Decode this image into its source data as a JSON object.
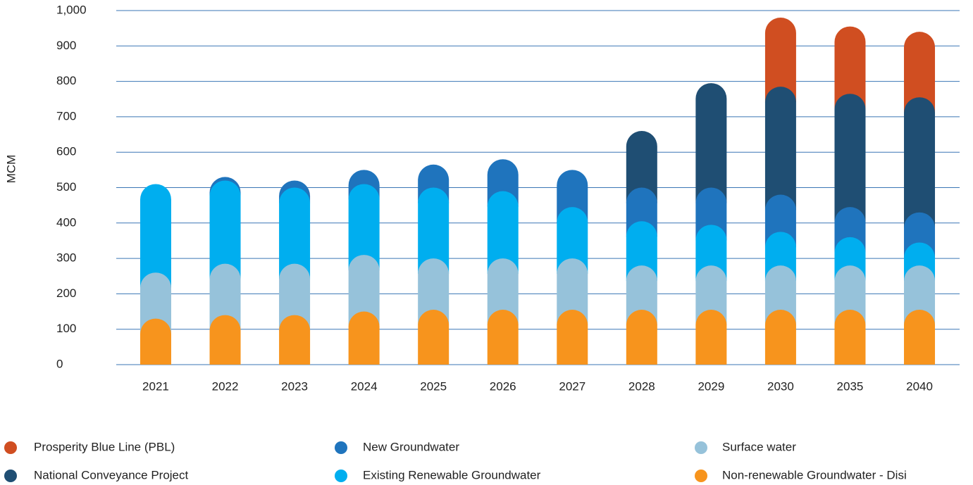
{
  "chart_data": {
    "type": "stacked_bar",
    "y_label": "MCM",
    "categories": [
      "2021",
      "2022",
      "2023",
      "2024",
      "2025",
      "2026",
      "2027",
      "2028",
      "2029",
      "2030",
      "2035",
      "2040"
    ],
    "series": [
      {
        "name": "Non-renewable Groundwater - Disi",
        "color": "#f7941d",
        "values": [
          130,
          140,
          140,
          150,
          155,
          155,
          155,
          155,
          155,
          155,
          155,
          155
        ]
      },
      {
        "name": "Surface water",
        "color": "#96c2da",
        "values": [
          130,
          145,
          145,
          160,
          145,
          145,
          145,
          125,
          125,
          125,
          125,
          125
        ]
      },
      {
        "name": "Existing Renewable Groundwater",
        "color": "#00aeef",
        "values": [
          250,
          235,
          215,
          200,
          200,
          190,
          145,
          125,
          115,
          95,
          80,
          65
        ]
      },
      {
        "name": "New Groundwater",
        "color": "#1f74bd",
        "values": [
          0,
          10,
          20,
          40,
          65,
          90,
          105,
          95,
          105,
          105,
          85,
          85
        ]
      },
      {
        "name": "National Conveyance Project",
        "color": "#1f4e73",
        "values": [
          0,
          0,
          0,
          0,
          0,
          0,
          0,
          160,
          295,
          305,
          320,
          325
        ]
      },
      {
        "name": "Prosperity Blue Line (PBL)",
        "color": "#d04e21",
        "values": [
          0,
          0,
          0,
          0,
          0,
          0,
          0,
          0,
          0,
          195,
          190,
          185
        ]
      }
    ],
    "ylim": [
      0,
      1000
    ],
    "yticks": [
      0,
      100,
      200,
      300,
      400,
      500,
      600,
      700,
      800,
      900,
      {
        "value": 1000,
        "label": "1,000"
      }
    ],
    "grid": true
  }
}
